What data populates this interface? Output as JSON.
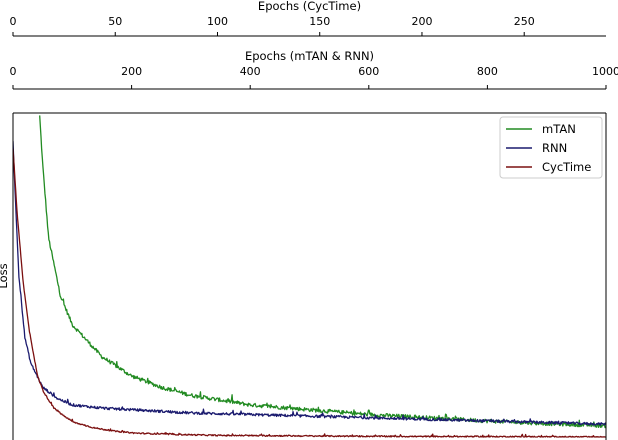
{
  "chart_data": {
    "type": "line",
    "top_axes": [
      {
        "label": "Epochs (CycTime)",
        "range": [
          0,
          290
        ],
        "ticks": [
          0,
          50,
          100,
          150,
          200,
          250
        ],
        "tick_labels": [
          "0",
          "50",
          "100",
          "150",
          "200",
          "250"
        ]
      },
      {
        "label": "Epochs (mTAN & RNN)",
        "range": [
          0,
          1000
        ],
        "ticks": [
          0,
          200,
          400,
          600,
          800,
          1000
        ],
        "tick_labels": [
          "0",
          "200",
          "400",
          "600",
          "800",
          "1000"
        ]
      }
    ],
    "ylabel": "Loss",
    "ylim": [
      0,
      1
    ],
    "yticks_shown": false,
    "legend_position": "top-right",
    "series": [
      {
        "name": "mTAN",
        "color": "#228B22",
        "x_axis": "Epochs (mTAN & RNN)",
        "x": [
          45,
          50,
          60,
          80,
          100,
          150,
          200,
          250,
          300,
          400,
          500,
          600,
          700,
          800,
          900,
          1000
        ],
        "y": [
          1.0,
          0.85,
          0.62,
          0.44,
          0.35,
          0.25,
          0.19,
          0.155,
          0.13,
          0.1,
          0.085,
          0.07,
          0.06,
          0.05,
          0.042,
          0.035
        ],
        "noise": 0.006
      },
      {
        "name": "RNN",
        "color": "#1A1A6E",
        "x_axis": "Epochs (mTAN & RNN)",
        "x": [
          0,
          5,
          10,
          20,
          30,
          50,
          75,
          100,
          150,
          200,
          300,
          400,
          500,
          600,
          700,
          800,
          900,
          1000
        ],
        "y": [
          0.92,
          0.7,
          0.5,
          0.31,
          0.23,
          0.155,
          0.12,
          0.1,
          0.09,
          0.085,
          0.075,
          0.07,
          0.065,
          0.06,
          0.055,
          0.05,
          0.045,
          0.04
        ],
        "noise": 0.004
      },
      {
        "name": "CycTime",
        "color": "#7B1010",
        "x_axis": "Epochs (CycTime)",
        "x": [
          0,
          2,
          5,
          8,
          12,
          15,
          20,
          25,
          30,
          40,
          50,
          60,
          80,
          100,
          150,
          200,
          250,
          290
        ],
        "y": [
          0.9,
          0.7,
          0.48,
          0.33,
          0.19,
          0.14,
          0.09,
          0.065,
          0.045,
          0.028,
          0.018,
          0.012,
          0.008,
          0.005,
          0.003,
          0.0015,
          0.001,
          0.0
        ],
        "noise": 0.002
      }
    ]
  }
}
